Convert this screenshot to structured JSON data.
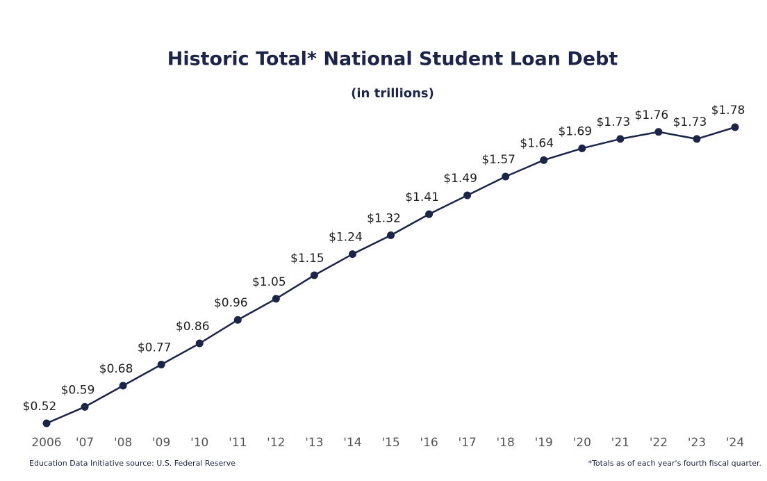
{
  "chart_data": {
    "type": "line",
    "title": "Historic Total* National Student Loan Debt",
    "subtitle": "(in trillions)",
    "categories": [
      "2006",
      "'07",
      "'08",
      "'09",
      "'10",
      "'11",
      "'12",
      "'13",
      "'14",
      "'15",
      "'16",
      "'17",
      "'18",
      "'19",
      "'20",
      "'21",
      "'22",
      "'23",
      "'24"
    ],
    "values": [
      0.52,
      0.59,
      0.68,
      0.77,
      0.86,
      0.96,
      1.05,
      1.15,
      1.24,
      1.32,
      1.41,
      1.49,
      1.57,
      1.64,
      1.69,
      1.73,
      1.76,
      1.73,
      1.78
    ],
    "value_labels": [
      "$0.52",
      "$0.59",
      "$0.68",
      "$0.77",
      "$0.86",
      "$0.96",
      "$1.05",
      "$1.15",
      "$1.24",
      "$1.32",
      "$1.41",
      "$1.49",
      "$1.57",
      "$1.64",
      "$1.69",
      "$1.73",
      "$1.76",
      "$1.73",
      "$1.78"
    ],
    "color": "#1c2548",
    "source": "Education Data Initiative source: U.S. Federal Reserve",
    "footnote": "*Totals as of each year's fourth fiscal quarter."
  }
}
